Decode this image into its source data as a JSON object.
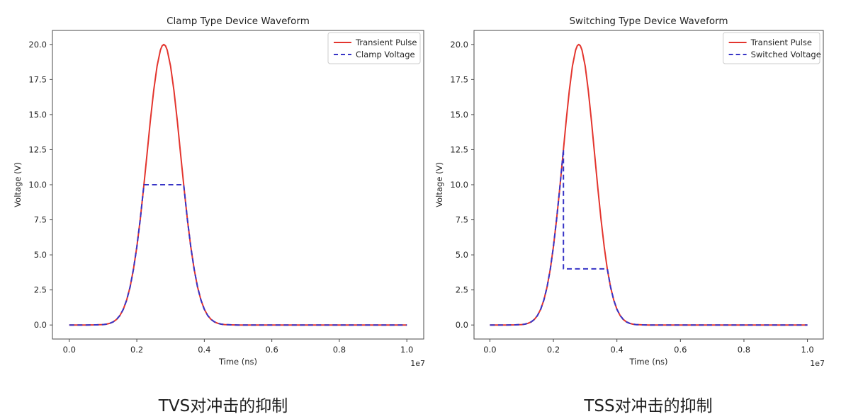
{
  "page": {
    "background_color": "#ffffff",
    "text_color": "#262626",
    "spine_color": "#4a4a4a"
  },
  "figure_captions": {
    "left": "TVS对冲击的抑制",
    "right": "TSS对冲击的抑制"
  },
  "chart_data": [
    {
      "type": "line",
      "title": "Clamp Type Device Waveform",
      "xlabel": "Time (ns)",
      "ylabel": "Voltage (V)",
      "x_offset_text": "1e7",
      "x_unit_note": "x values are in units of 1e7 ns",
      "xlim": [
        -0.05,
        1.05
      ],
      "ylim": [
        -1,
        21
      ],
      "grid": false,
      "legend_position": "upper right",
      "xticks": {
        "values": [
          0.0,
          0.2,
          0.4,
          0.6,
          0.8,
          1.0
        ],
        "labels": [
          "0.0",
          "0.2",
          "0.4",
          "0.6",
          "0.8",
          "1.0"
        ]
      },
      "yticks": {
        "values": [
          0,
          2.5,
          5,
          7.5,
          10,
          12.5,
          15,
          17.5,
          20
        ],
        "labels": [
          "0.0",
          "2.5",
          "5.0",
          "7.5",
          "10.0",
          "12.5",
          "15.0",
          "17.5",
          "20.0"
        ]
      },
      "key_levels": {
        "pulse_peak_v": 20,
        "pulse_center_1e7ns": 0.28,
        "pulse_sigma_1e7ns": 0.05,
        "clamp_voltage_v": 10
      },
      "series": [
        {
          "name": "Transient Pulse",
          "color": "#e3352e",
          "style": "solid",
          "width": 2,
          "points": [
            [
              0,
              0
            ],
            [
              0.05,
              0
            ],
            [
              0.08,
              0.01
            ],
            [
              0.09,
              0.02
            ],
            [
              0.1,
              0.03
            ],
            [
              0.11,
              0.06
            ],
            [
              0.12,
              0.12
            ],
            [
              0.13,
              0.22
            ],
            [
              0.14,
              0.4
            ],
            [
              0.15,
              0.68
            ],
            [
              0.16,
              1.12
            ],
            [
              0.17,
              1.78
            ],
            [
              0.18,
              2.71
            ],
            [
              0.19,
              3.96
            ],
            [
              0.2,
              5.56
            ],
            [
              0.21,
              7.51
            ],
            [
              0.22,
              9.74
            ],
            [
              0.23,
              12.13
            ],
            [
              0.24,
              14.52
            ],
            [
              0.25,
              16.71
            ],
            [
              0.26,
              18.46
            ],
            [
              0.27,
              19.6
            ],
            [
              0.275,
              19.9
            ],
            [
              0.28,
              20
            ],
            [
              0.285,
              19.9
            ],
            [
              0.29,
              19.6
            ],
            [
              0.3,
              18.46
            ],
            [
              0.31,
              16.71
            ],
            [
              0.32,
              14.52
            ],
            [
              0.33,
              12.13
            ],
            [
              0.34,
              9.74
            ],
            [
              0.35,
              7.51
            ],
            [
              0.36,
              5.56
            ],
            [
              0.37,
              3.96
            ],
            [
              0.38,
              2.71
            ],
            [
              0.39,
              1.78
            ],
            [
              0.4,
              1.12
            ],
            [
              0.41,
              0.68
            ],
            [
              0.42,
              0.4
            ],
            [
              0.43,
              0.22
            ],
            [
              0.44,
              0.12
            ],
            [
              0.45,
              0.06
            ],
            [
              0.46,
              0.03
            ],
            [
              0.47,
              0.02
            ],
            [
              0.48,
              0.01
            ],
            [
              0.5,
              0
            ],
            [
              0.6,
              0
            ],
            [
              0.7,
              0
            ],
            [
              0.8,
              0
            ],
            [
              0.9,
              0
            ],
            [
              1,
              0
            ]
          ]
        },
        {
          "name": "Clamp Voltage",
          "color": "#3734c6",
          "style": "dashed",
          "width": 2,
          "points": [
            [
              0,
              0
            ],
            [
              0.05,
              0
            ],
            [
              0.08,
              0.01
            ],
            [
              0.09,
              0.02
            ],
            [
              0.1,
              0.03
            ],
            [
              0.11,
              0.06
            ],
            [
              0.12,
              0.12
            ],
            [
              0.13,
              0.22
            ],
            [
              0.14,
              0.4
            ],
            [
              0.15,
              0.68
            ],
            [
              0.16,
              1.12
            ],
            [
              0.17,
              1.78
            ],
            [
              0.18,
              2.71
            ],
            [
              0.19,
              3.96
            ],
            [
              0.2,
              5.56
            ],
            [
              0.21,
              7.51
            ],
            [
              0.22,
              9.74
            ],
            [
              0.221,
              10
            ],
            [
              0.339,
              10
            ],
            [
              0.34,
              9.74
            ],
            [
              0.35,
              7.51
            ],
            [
              0.36,
              5.56
            ],
            [
              0.37,
              3.96
            ],
            [
              0.38,
              2.71
            ],
            [
              0.39,
              1.78
            ],
            [
              0.4,
              1.12
            ],
            [
              0.41,
              0.68
            ],
            [
              0.42,
              0.4
            ],
            [
              0.43,
              0.22
            ],
            [
              0.44,
              0.12
            ],
            [
              0.45,
              0.06
            ],
            [
              0.46,
              0.03
            ],
            [
              0.47,
              0.02
            ],
            [
              0.48,
              0.01
            ],
            [
              0.5,
              0
            ],
            [
              0.6,
              0
            ],
            [
              0.7,
              0
            ],
            [
              0.8,
              0
            ],
            [
              0.9,
              0
            ],
            [
              1,
              0
            ]
          ]
        }
      ]
    },
    {
      "type": "line",
      "title": "Switching Type Device Waveform",
      "xlabel": "Time (ns)",
      "ylabel": "Voltage (V)",
      "x_offset_text": "1e7",
      "x_unit_note": "x values are in units of 1e7 ns",
      "xlim": [
        -0.05,
        1.05
      ],
      "ylim": [
        -1,
        21
      ],
      "grid": false,
      "legend_position": "upper right",
      "xticks": {
        "values": [
          0.0,
          0.2,
          0.4,
          0.6,
          0.8,
          1.0
        ],
        "labels": [
          "0.0",
          "0.2",
          "0.4",
          "0.6",
          "0.8",
          "1.0"
        ]
      },
      "yticks": {
        "values": [
          0,
          2.5,
          5,
          7.5,
          10,
          12.5,
          15,
          17.5,
          20
        ],
        "labels": [
          "0.0",
          "2.5",
          "5.0",
          "7.5",
          "10.0",
          "12.5",
          "15.0",
          "17.5",
          "20.0"
        ]
      },
      "key_levels": {
        "pulse_peak_v": 20,
        "pulse_center_1e7ns": 0.28,
        "pulse_sigma_1e7ns": 0.05,
        "trigger_voltage_v": 12.5,
        "holding_voltage_v": 4
      },
      "series": [
        {
          "name": "Transient Pulse",
          "color": "#e3352e",
          "style": "solid",
          "width": 2,
          "points": [
            [
              0,
              0
            ],
            [
              0.05,
              0
            ],
            [
              0.08,
              0.01
            ],
            [
              0.09,
              0.02
            ],
            [
              0.1,
              0.03
            ],
            [
              0.11,
              0.06
            ],
            [
              0.12,
              0.12
            ],
            [
              0.13,
              0.22
            ],
            [
              0.14,
              0.4
            ],
            [
              0.15,
              0.68
            ],
            [
              0.16,
              1.12
            ],
            [
              0.17,
              1.78
            ],
            [
              0.18,
              2.71
            ],
            [
              0.19,
              3.96
            ],
            [
              0.2,
              5.56
            ],
            [
              0.21,
              7.51
            ],
            [
              0.22,
              9.74
            ],
            [
              0.23,
              12.13
            ],
            [
              0.24,
              14.52
            ],
            [
              0.25,
              16.71
            ],
            [
              0.26,
              18.46
            ],
            [
              0.27,
              19.6
            ],
            [
              0.275,
              19.9
            ],
            [
              0.28,
              20
            ],
            [
              0.285,
              19.9
            ],
            [
              0.29,
              19.6
            ],
            [
              0.3,
              18.46
            ],
            [
              0.31,
              16.71
            ],
            [
              0.32,
              14.52
            ],
            [
              0.33,
              12.13
            ],
            [
              0.34,
              9.74
            ],
            [
              0.35,
              7.51
            ],
            [
              0.36,
              5.56
            ],
            [
              0.37,
              3.96
            ],
            [
              0.38,
              2.71
            ],
            [
              0.39,
              1.78
            ],
            [
              0.4,
              1.12
            ],
            [
              0.41,
              0.68
            ],
            [
              0.42,
              0.4
            ],
            [
              0.43,
              0.22
            ],
            [
              0.44,
              0.12
            ],
            [
              0.45,
              0.06
            ],
            [
              0.46,
              0.03
            ],
            [
              0.47,
              0.02
            ],
            [
              0.48,
              0.01
            ],
            [
              0.5,
              0
            ],
            [
              0.6,
              0
            ],
            [
              0.7,
              0
            ],
            [
              0.8,
              0
            ],
            [
              0.9,
              0
            ],
            [
              1,
              0
            ]
          ]
        },
        {
          "name": "Switched Voltage",
          "color": "#3734c6",
          "style": "dashed",
          "width": 2,
          "points": [
            [
              0,
              0
            ],
            [
              0.05,
              0
            ],
            [
              0.08,
              0.01
            ],
            [
              0.09,
              0.02
            ],
            [
              0.1,
              0.03
            ],
            [
              0.11,
              0.06
            ],
            [
              0.12,
              0.12
            ],
            [
              0.13,
              0.22
            ],
            [
              0.14,
              0.4
            ],
            [
              0.15,
              0.68
            ],
            [
              0.16,
              1.12
            ],
            [
              0.17,
              1.78
            ],
            [
              0.18,
              2.71
            ],
            [
              0.19,
              3.96
            ],
            [
              0.2,
              5.56
            ],
            [
              0.21,
              7.51
            ],
            [
              0.22,
              9.74
            ],
            [
              0.23,
              12.13
            ],
            [
              0.2315,
              12.5
            ],
            [
              0.2315,
              4
            ],
            [
              0.37,
              4
            ],
            [
              0.38,
              2.71
            ],
            [
              0.39,
              1.78
            ],
            [
              0.4,
              1.12
            ],
            [
              0.41,
              0.68
            ],
            [
              0.42,
              0.4
            ],
            [
              0.43,
              0.22
            ],
            [
              0.44,
              0.12
            ],
            [
              0.45,
              0.06
            ],
            [
              0.46,
              0.03
            ],
            [
              0.47,
              0.02
            ],
            [
              0.48,
              0.01
            ],
            [
              0.5,
              0
            ],
            [
              0.6,
              0
            ],
            [
              0.7,
              0
            ],
            [
              0.8,
              0
            ],
            [
              0.9,
              0
            ],
            [
              1,
              0
            ]
          ]
        }
      ]
    }
  ]
}
